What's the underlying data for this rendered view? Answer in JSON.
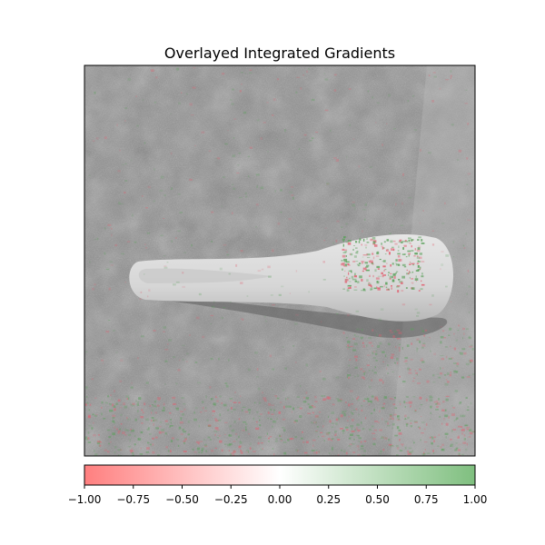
{
  "chart_data": {
    "type": "heatmap",
    "title": "Overlayed Integrated Gradients",
    "subject": "spoon",
    "grid": false,
    "axes_ticks_visible": false,
    "colorbar": {
      "orientation": "horizontal",
      "placement": "bottom",
      "vmin": -1.0,
      "vmax": 1.0,
      "cmap": [
        {
          "value": -1.0,
          "color": "#ff7f7f"
        },
        {
          "value": 0.0,
          "color": "#ffffff"
        },
        {
          "value": 1.0,
          "color": "#7fbf7f"
        }
      ],
      "ticks": [
        -1.0,
        -0.75,
        -0.5,
        -0.25,
        0.0,
        0.25,
        0.5,
        0.75,
        1.0
      ],
      "tick_labels": [
        "−1.00",
        "−0.75",
        "−0.50",
        "−0.25",
        "0.00",
        "0.25",
        "0.50",
        "0.75",
        "1.00"
      ]
    }
  },
  "colors": {
    "background_gray": "#8c8c8c",
    "spoon": "#d8d8d8",
    "positive": "#5aa05a",
    "negative": "#e06070",
    "axes_edge": "#000000"
  }
}
